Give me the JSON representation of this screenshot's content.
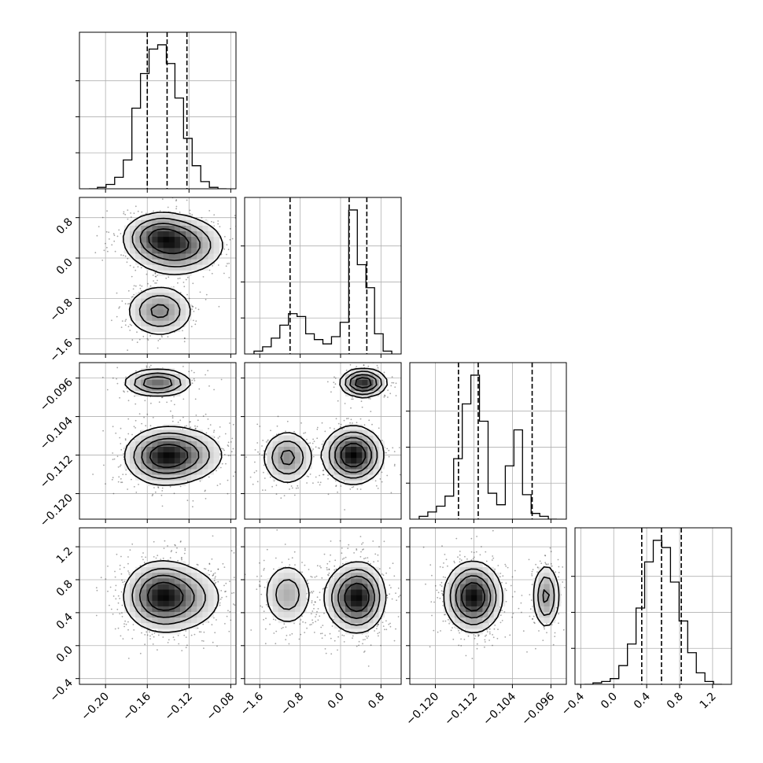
{
  "chart_data": {
    "type": "corner",
    "parameters": [
      {
        "range": [
          -0.225,
          -0.075
        ],
        "ticks": [
          {
            "value": -0.2,
            "label": "−0.20"
          },
          {
            "value": -0.16,
            "label": "−0.16"
          },
          {
            "value": -0.12,
            "label": "−0.12"
          },
          {
            "value": -0.08,
            "label": "−0.08"
          }
        ],
        "quantiles": [
          -0.16,
          -0.141,
          -0.122
        ],
        "histogram": [
          0,
          1,
          3,
          8,
          20,
          56,
          80,
          97,
          100,
          87,
          63,
          35,
          16,
          5,
          1,
          0
        ]
      },
      {
        "range": [
          -1.9,
          1.2
        ],
        "ticks": [
          {
            "value": -1.6,
            "label": "−1.6"
          },
          {
            "value": -0.8,
            "label": "−0.8"
          },
          {
            "value": 0.0,
            "label": "0.0"
          },
          {
            "value": 0.8,
            "label": "0.8"
          }
        ],
        "quantiles": [
          -1.0,
          0.17,
          0.52
        ],
        "histogram": [
          2,
          5,
          11,
          20,
          28,
          26,
          14,
          10,
          7,
          12,
          22,
          100,
          62,
          46,
          14,
          2
        ]
      },
      {
        "range": [
          -0.1253,
          -0.0928
        ],
        "ticks": [
          {
            "value": -0.12,
            "label": "−0.120"
          },
          {
            "value": -0.112,
            "label": "−0.112"
          },
          {
            "value": -0.104,
            "label": "−0.104"
          },
          {
            "value": -0.096,
            "label": "−0.096"
          }
        ],
        "quantiles": [
          -0.1152,
          -0.1111,
          -0.0999
        ],
        "histogram": [
          2,
          5,
          9,
          16,
          42,
          80,
          100,
          68,
          18,
          10,
          37,
          62,
          17,
          4,
          2,
          0
        ]
      },
      {
        "range": [
          -0.47,
          1.43
        ],
        "ticks": [
          {
            "value": -0.4,
            "label": "−0.4"
          },
          {
            "value": 0.0,
            "label": "0.0"
          },
          {
            "value": 0.4,
            "label": "0.4"
          },
          {
            "value": 0.8,
            "label": "0.8"
          },
          {
            "value": 1.2,
            "label": "1.2"
          }
        ],
        "quantiles": [
          0.34,
          0.58,
          0.82
        ],
        "histogram": [
          0,
          1,
          2,
          4,
          13,
          28,
          53,
          85,
          100,
          95,
          71,
          44,
          22,
          8,
          2,
          0
        ]
      }
    ],
    "modes": [
      {
        "weight": 0.55,
        "mean": [
          -0.132,
          0.25,
          -0.112,
          0.58
        ],
        "sd": [
          0.022,
          0.28,
          0.0028,
          0.2
        ]
      },
      {
        "weight": 0.2,
        "mean": [
          -0.15,
          0.45,
          -0.097,
          0.6
        ],
        "sd": [
          0.016,
          0.22,
          0.0014,
          0.2
        ]
      },
      {
        "weight": 0.25,
        "mean": [
          -0.148,
          -1.05,
          -0.1125,
          0.62
        ],
        "sd": [
          0.016,
          0.25,
          0.0028,
          0.2
        ]
      }
    ],
    "grid": true
  }
}
